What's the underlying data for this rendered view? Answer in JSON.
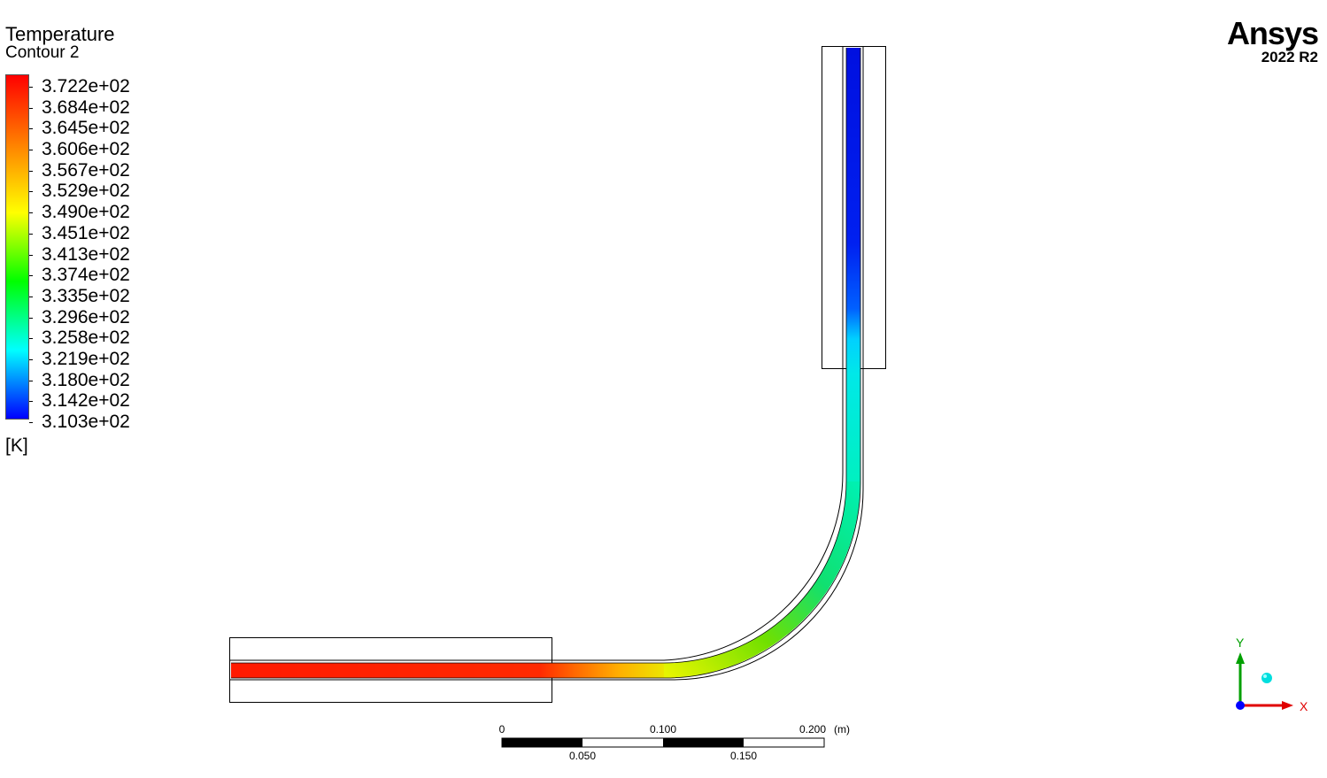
{
  "legend": {
    "title": "Temperature",
    "subtitle": "Contour 2",
    "units": "[K]",
    "ticks": [
      "3.722e+02",
      "3.684e+02",
      "3.645e+02",
      "3.606e+02",
      "3.567e+02",
      "3.529e+02",
      "3.490e+02",
      "3.451e+02",
      "3.413e+02",
      "3.374e+02",
      "3.335e+02",
      "3.296e+02",
      "3.258e+02",
      "3.219e+02",
      "3.180e+02",
      "3.142e+02",
      "3.103e+02"
    ],
    "colors": [
      "#ff0000",
      "#ff8000",
      "#ffff00",
      "#00ff00",
      "#00ffff",
      "#0000ff"
    ]
  },
  "brand": {
    "name": "Ansys",
    "version": "2022 R2"
  },
  "scale_bar": {
    "top_labels": [
      "0",
      "0.100",
      "0.200"
    ],
    "bottom_labels": [
      "0.050",
      "0.150"
    ],
    "unit": "(m)"
  },
  "triad": {
    "y_label": "Y",
    "x_label": "X",
    "colors": {
      "y": "#00a000",
      "x": "#e00000",
      "z": "#0000ff",
      "sphere": "#00dede"
    }
  }
}
